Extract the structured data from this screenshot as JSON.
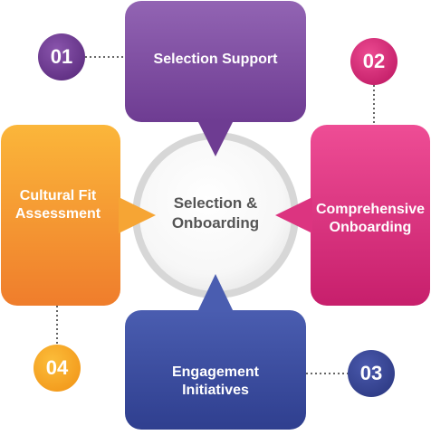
{
  "center": {
    "title": "Selection &\nOnboarding"
  },
  "items": [
    {
      "number": "01",
      "label": "Selection Support"
    },
    {
      "number": "02",
      "label": "Comprehensive\nOnboarding"
    },
    {
      "number": "03",
      "label": "Engagement\nInitiatives"
    },
    {
      "number": "04",
      "label": "Cultural Fit\nAssessment"
    }
  ],
  "colors": {
    "selection_support": "#7e4a9f",
    "comprehensive_onboarding": "#d9307a",
    "engagement_initiatives": "#3d4fa0",
    "cultural_fit": "#f0942e",
    "number_01": "#6f3b90",
    "number_02": "#d52f77",
    "number_03": "#3b4898",
    "number_04": "#f4a11e",
    "center_ring": "#d9d9d9",
    "connector": "#666666"
  }
}
